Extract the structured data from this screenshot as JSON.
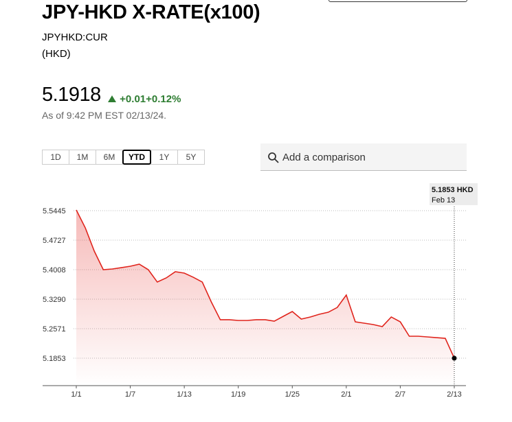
{
  "header": {
    "title": "JPY-HKD X-RATE(x100)",
    "ticker": "JPYHKD:CUR",
    "currency": "(HKD)"
  },
  "quote": {
    "price": "5.1918",
    "change": "+0.01",
    "change_pct": "+0.12%",
    "as_of": "As of 9:42 PM EST 02/13/24."
  },
  "range_buttons": [
    "1D",
    "1M",
    "6M",
    "YTD",
    "1Y",
    "5Y"
  ],
  "selected_range": "YTD",
  "comparison": {
    "placeholder": "Add a comparison"
  },
  "chart_data": {
    "type": "area",
    "color": "#e0241c",
    "grid": true,
    "categories": [
      "1/1",
      null,
      null,
      null,
      null,
      null,
      "1/7",
      null,
      null,
      null,
      null,
      null,
      "1/13",
      null,
      null,
      null,
      null,
      null,
      "1/19",
      null,
      null,
      null,
      null,
      null,
      "1/25",
      null,
      null,
      null,
      null,
      null,
      "2/1",
      null,
      null,
      null,
      null,
      null,
      "2/7",
      null,
      null,
      null,
      null,
      null,
      "2/13"
    ],
    "values": [
      5.5462,
      5.5027,
      5.4459,
      5.4008,
      5.4025,
      5.4058,
      5.4092,
      5.4142,
      5.4008,
      5.3707,
      5.3808,
      5.3958,
      5.3925,
      5.3824,
      5.3707,
      5.3223,
      5.2789,
      5.2789,
      5.2772,
      5.2772,
      5.2789,
      5.2789,
      5.2755,
      5.2872,
      5.2989,
      5.2805,
      5.2856,
      5.2922,
      5.2972,
      5.3089,
      5.339,
      5.2738,
      5.2705,
      5.2672,
      5.2622,
      5.2856,
      5.2738,
      5.2388,
      5.2388,
      5.2371,
      5.2354,
      5.2337,
      5.1853
    ],
    "ylim": [
      5.1185,
      5.5729
    ],
    "yticks": [
      5.1853,
      5.2571,
      {
        "value": 5.329,
        "label": "5.3290"
      },
      5.4008,
      5.4727,
      5.5445
    ],
    "tooltip": {
      "value_label": "5.1853 HKD",
      "date": "Feb 13"
    }
  }
}
